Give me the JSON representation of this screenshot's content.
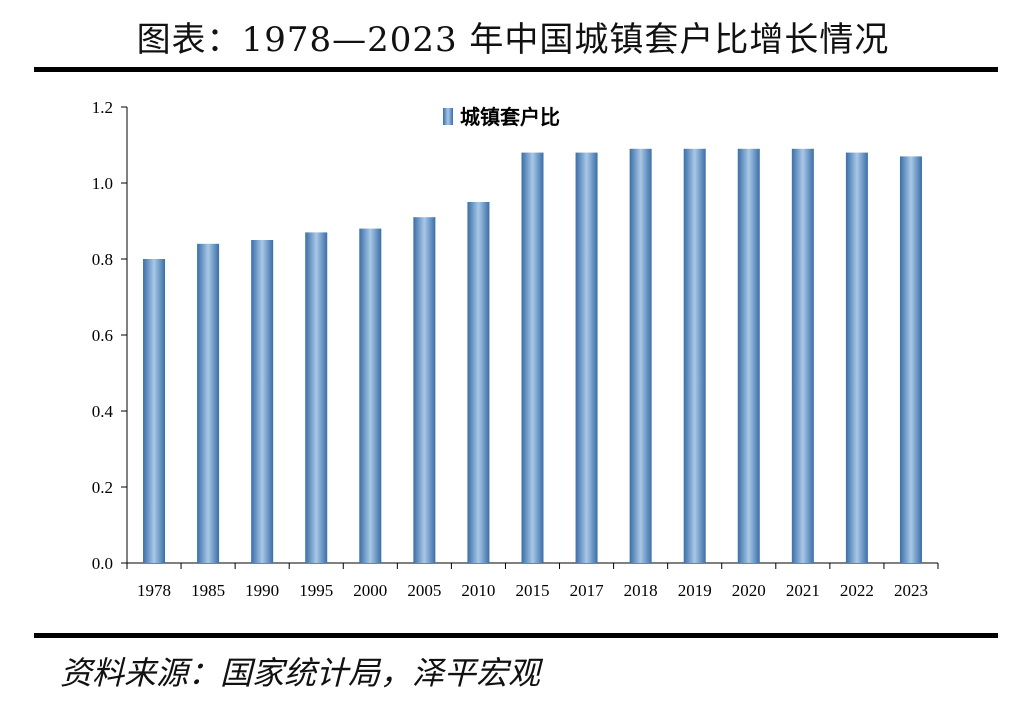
{
  "header": {
    "title": "图表：1978—2023 年中国城镇套户比增长情况"
  },
  "footer": {
    "source": "资料来源：国家统计局，泽平宏观"
  },
  "chart_data": {
    "type": "bar",
    "categories": [
      "1978",
      "1985",
      "1990",
      "1995",
      "2000",
      "2005",
      "2010",
      "2015",
      "2017",
      "2018",
      "2019",
      "2020",
      "2021",
      "2022",
      "2023"
    ],
    "series": [
      {
        "name": "城镇套户比",
        "values": [
          0.8,
          0.84,
          0.85,
          0.87,
          0.88,
          0.91,
          0.95,
          1.08,
          1.08,
          1.09,
          1.09,
          1.09,
          1.09,
          1.08,
          1.07
        ]
      }
    ],
    "ylim": [
      0,
      1.2
    ],
    "yticks": [
      "0.0",
      "0.2",
      "0.4",
      "0.6",
      "0.8",
      "1.0",
      "1.2"
    ],
    "legend": "top-center",
    "grid": false,
    "colors": {
      "bar_edge": "#3a6ea8",
      "bar_center": "#a9c8e6",
      "bar_mid": "#5b8fc6"
    }
  }
}
